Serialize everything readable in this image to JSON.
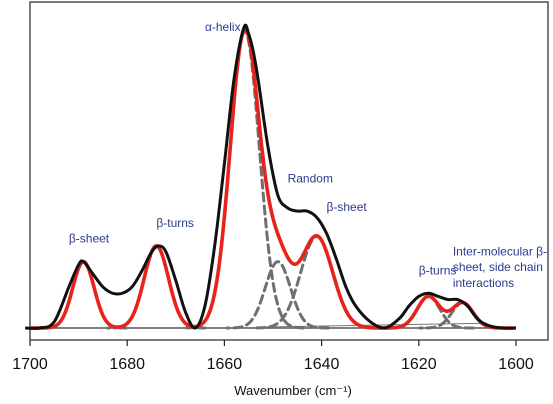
{
  "chart_data": {
    "type": "line",
    "title": "",
    "xlabel": "Wavenumber (cm⁻¹)",
    "ylabel": "",
    "x_reversed": true,
    "xlim": [
      1700,
      1600
    ],
    "ylim": [
      0,
      1.0
    ],
    "grid": false,
    "x_ticks": [
      1700,
      1680,
      1660,
      1640,
      1620,
      1600
    ],
    "annotations": [
      {
        "text": "α-helix",
        "x": 1664,
        "y": 0.94
      },
      {
        "text": "Random",
        "x": 1647,
        "y": 0.46
      },
      {
        "text": "β-sheet",
        "x": 1639,
        "y": 0.37
      },
      {
        "text": "β-sheet",
        "x": 1692,
        "y": 0.27
      },
      {
        "text": "β-turns",
        "x": 1674,
        "y": 0.32
      },
      {
        "text": "β-turns",
        "x": 1620,
        "y": 0.17
      },
      {
        "text": "Inter-molecular β-",
        "x": 1613,
        "y": 0.23
      },
      {
        "text": "sheet, side chain",
        "x": 1613,
        "y": 0.18
      },
      {
        "text": "interactions",
        "x": 1613,
        "y": 0.13
      }
    ],
    "component_peaks": [
      {
        "center": 1689,
        "height": 0.21,
        "width": 2.2
      },
      {
        "center": 1674,
        "height": 0.26,
        "width": 2.5
      },
      {
        "center": 1655.8,
        "height": 0.94,
        "width": 3.0
      },
      {
        "center": 1649,
        "height": 0.21,
        "width": 2.6
      },
      {
        "center": 1641,
        "height": 0.29,
        "width": 3.3
      },
      {
        "center": 1618,
        "height": 0.1,
        "width": 2.3
      },
      {
        "center": 1611,
        "height": 0.08,
        "width": 2.2
      }
    ],
    "series": [
      {
        "style": "black-solid",
        "x": [
          1701,
          1698,
          1695,
          1692,
          1690,
          1689,
          1687,
          1685,
          1683,
          1681,
          1679,
          1677,
          1675,
          1673.5,
          1672,
          1670,
          1668,
          1666,
          1664,
          1662,
          1660,
          1658,
          1656,
          1655,
          1654,
          1653,
          1651,
          1649,
          1647,
          1645,
          1643,
          1641,
          1639,
          1637,
          1635,
          1633,
          1630,
          1627,
          1624,
          1622,
          1620,
          1618,
          1616,
          1614,
          1612,
          1610,
          1608,
          1606,
          1603,
          1600
        ],
        "y": [
          0.0,
          0.0,
          0.02,
          0.13,
          0.2,
          0.21,
          0.17,
          0.13,
          0.11,
          0.11,
          0.13,
          0.18,
          0.24,
          0.26,
          0.24,
          0.15,
          0.05,
          0.0,
          0.07,
          0.26,
          0.52,
          0.79,
          0.95,
          0.93,
          0.87,
          0.78,
          0.57,
          0.42,
          0.38,
          0.37,
          0.37,
          0.35,
          0.3,
          0.22,
          0.13,
          0.07,
          0.02,
          0.0,
          0.03,
          0.07,
          0.1,
          0.11,
          0.1,
          0.09,
          0.09,
          0.07,
          0.03,
          0.01,
          0.0,
          0.0
        ]
      },
      {
        "style": "red-fit"
      },
      {
        "style": "gray-dashed-components"
      }
    ]
  }
}
